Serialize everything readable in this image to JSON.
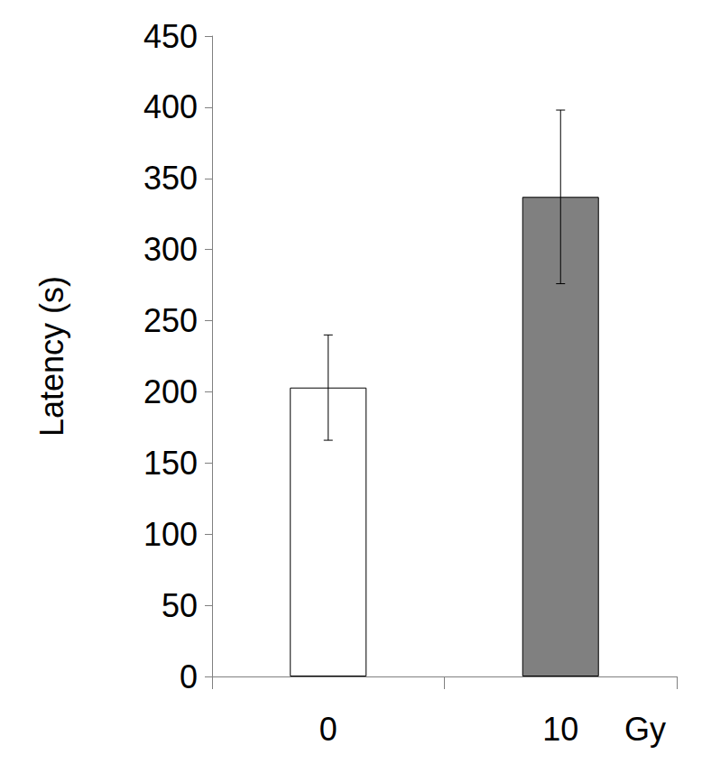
{
  "chart_data": {
    "type": "bar",
    "categories": [
      "0",
      "10"
    ],
    "values": [
      203,
      337
    ],
    "errors": [
      37,
      61
    ],
    "colors": [
      "#ffffff",
      "#808080"
    ],
    "x_label": "Gy",
    "y_label": "Latency (s)",
    "ylim": [
      0,
      450
    ],
    "yticks": [
      0,
      50,
      100,
      150,
      200,
      250,
      300,
      350,
      400,
      450
    ],
    "grid": false
  }
}
